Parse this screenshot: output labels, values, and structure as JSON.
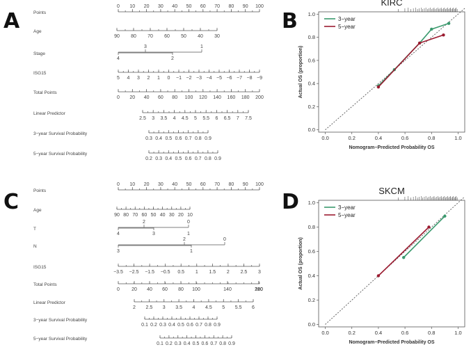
{
  "panels": {
    "A": {
      "letter": "A",
      "type": "nomogram",
      "rows": [
        {
          "label": "Points",
          "ticks": [
            "0",
            "10",
            "20",
            "30",
            "40",
            "50",
            "60",
            "70",
            "80",
            "90",
            "100"
          ],
          "upper": []
        },
        {
          "label": "Age",
          "ticks": [
            "90",
            "80",
            "70",
            "60",
            "50",
            "40",
            "30"
          ],
          "upper": []
        },
        {
          "label": "Stage",
          "ticks": [
            "4",
            "2"
          ],
          "upper": [
            "3",
            "1"
          ]
        },
        {
          "label": "ISG15",
          "ticks": [
            "5",
            "4",
            "3",
            "2",
            "1",
            "0",
            "−1",
            "−2",
            "−3",
            "−4",
            "−5",
            "−6",
            "−7",
            "−8",
            "−9"
          ],
          "upper": []
        },
        {
          "label": "Total Points",
          "ticks": [
            "0",
            "20",
            "40",
            "60",
            "80",
            "100",
            "120",
            "140",
            "160",
            "180",
            "200"
          ],
          "upper": []
        },
        {
          "label": "Linear Predictor",
          "ticks": [
            "2.5",
            "3",
            "3.5",
            "4",
            "4.5",
            "5",
            "5.5",
            "6",
            "6.5",
            "7",
            "7.5"
          ],
          "upper": []
        },
        {
          "label": "3−year Survival Probability",
          "ticks": [
            "0.3",
            "0.4",
            "0.5",
            "0.6",
            "0.7",
            "0.8",
            "0.9"
          ],
          "upper": []
        },
        {
          "label": "5−year Survival Probability",
          "ticks": [
            "0.2",
            "0.3",
            "0.4",
            "0.5",
            "0.6",
            "0.7",
            "0.8",
            "0.9"
          ],
          "upper": []
        }
      ]
    },
    "B": {
      "letter": "B",
      "type": "calibration",
      "title": "KIRC",
      "xlabel": "Nomogram−Predicted Probability OS",
      "ylabel": "Actual OS (proportion)",
      "xticks": [
        "0.0",
        "0.2",
        "0.4",
        "0.6",
        "0.8",
        "1.0"
      ],
      "yticks": [
        "0.0",
        "0.2",
        "0.4",
        "0.6",
        "0.8",
        "1.0"
      ],
      "legend": [
        "3−year",
        "5−year"
      ]
    },
    "C": {
      "letter": "C",
      "type": "nomogram",
      "rows": [
        {
          "label": "Points",
          "ticks": [
            "0",
            "10",
            "20",
            "30",
            "40",
            "50",
            "60",
            "70",
            "80",
            "90",
            "100"
          ],
          "upper": []
        },
        {
          "label": "Age",
          "ticks": [
            "90",
            "80",
            "70",
            "60",
            "50",
            "40",
            "30",
            "20",
            "10"
          ],
          "upper": []
        },
        {
          "label": "T",
          "ticks": [
            "4",
            "3"
          ],
          "upper": [
            "2",
            "0"
          ],
          "extra": [
            "1"
          ]
        },
        {
          "label": "N",
          "ticks": [
            "3",
            "1"
          ],
          "upper": [
            "2",
            "0"
          ]
        },
        {
          "label": "ISG15",
          "ticks": [
            "−3.5",
            "−2.5",
            "−1.5",
            "−0.5",
            "0.5",
            "1",
            "1.5",
            "2",
            "2.5",
            "3"
          ],
          "upper": []
        },
        {
          "label": "Total Points",
          "ticks": [
            "0",
            "20",
            "40",
            "60",
            "80",
            "100",
            "140",
            "180",
            "220",
            "260"
          ],
          "upper": []
        },
        {
          "label": "Linear Predictor",
          "ticks": [
            "2",
            "2.5",
            "3",
            "3.5",
            "4",
            "4.5",
            "5",
            "5.5",
            "6"
          ],
          "upper": []
        },
        {
          "label": "3−year Survival Probability",
          "ticks": [
            "0.1",
            "0.2",
            "0.3",
            "0.4",
            "0.5",
            "0.6",
            "0.7",
            "0.8",
            "0.9"
          ],
          "upper": []
        },
        {
          "label": "5−year Survival Probability",
          "ticks": [
            "0.1",
            "0.2",
            "0.3",
            "0.4",
            "0.5",
            "0.6",
            "0.7",
            "0.8",
            "0.9"
          ],
          "upper": []
        }
      ]
    },
    "D": {
      "letter": "D",
      "type": "calibration",
      "title": "SKCM",
      "xlabel": "Nomogram−Predicted Probability OS",
      "ylabel": "Actual OS (proportion)",
      "xticks": [
        "0.0",
        "0.2",
        "0.4",
        "0.6",
        "0.8",
        "1.0"
      ],
      "yticks": [
        "0.0",
        "0.2",
        "0.4",
        "0.6",
        "0.8",
        "1.0"
      ],
      "legend": [
        "3−year",
        "5−year"
      ]
    }
  },
  "colors": {
    "three_year": "#3a9a6e",
    "five_year": "#9b1b30",
    "diagonal": "#555555"
  },
  "chart_data": [
    {
      "type": "line",
      "title": "KIRC",
      "xlabel": "Nomogram−Predicted Probability OS",
      "ylabel": "Actual OS (proportion)",
      "xlim": [
        0,
        1
      ],
      "ylim": [
        0,
        1
      ],
      "legend": "top-left",
      "series": [
        {
          "name": "3−year",
          "x": [
            0.4,
            0.52,
            0.71,
            0.8,
            0.93
          ],
          "y": [
            0.38,
            0.52,
            0.75,
            0.87,
            0.92
          ]
        },
        {
          "name": "5−year",
          "x": [
            0.4,
            0.71,
            0.89
          ],
          "y": [
            0.37,
            0.75,
            0.82
          ]
        }
      ]
    },
    {
      "type": "line",
      "title": "SKCM",
      "xlabel": "Nomogram−Predicted Probability OS",
      "ylabel": "Actual OS (proportion)",
      "xlim": [
        0,
        1
      ],
      "ylim": [
        0,
        1
      ],
      "legend": "top-left",
      "series": [
        {
          "name": "3−year",
          "x": [
            0.59,
            0.9
          ],
          "y": [
            0.55,
            0.89
          ]
        },
        {
          "name": "5−year",
          "x": [
            0.4,
            0.78
          ],
          "y": [
            0.4,
            0.8
          ]
        }
      ]
    }
  ]
}
